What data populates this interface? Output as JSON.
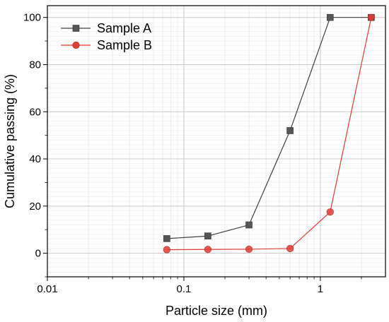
{
  "chart_data": {
    "type": "line",
    "xlabel": "Particle size (mm)",
    "ylabel": "Cumulative passing (%)",
    "x_scale": "log",
    "xlim": [
      0.01,
      3
    ],
    "ylim": [
      -10,
      105
    ],
    "x_ticks": [
      0.01,
      0.1,
      1
    ],
    "x_tick_labels": [
      "0.01",
      "0.1",
      "1"
    ],
    "y_ticks": [
      0,
      20,
      40,
      60,
      80,
      100
    ],
    "y_tick_labels": [
      "0",
      "20",
      "40",
      "60",
      "80",
      "100"
    ],
    "grid": true,
    "legend_position": "top-left",
    "series": [
      {
        "name": "Sample A",
        "color": "#404040",
        "marker": "square",
        "x": [
          0.075,
          0.15,
          0.3,
          0.6,
          1.18,
          2.36
        ],
        "y": [
          6.2,
          7.3,
          12,
          52,
          100,
          100
        ]
      },
      {
        "name": "Sample B",
        "color": "#e03c31",
        "marker": "circle",
        "x": [
          0.075,
          0.15,
          0.3,
          0.6,
          1.18,
          2.36
        ],
        "y": [
          1.5,
          1.6,
          1.7,
          2.0,
          17.5,
          100
        ]
      }
    ]
  }
}
